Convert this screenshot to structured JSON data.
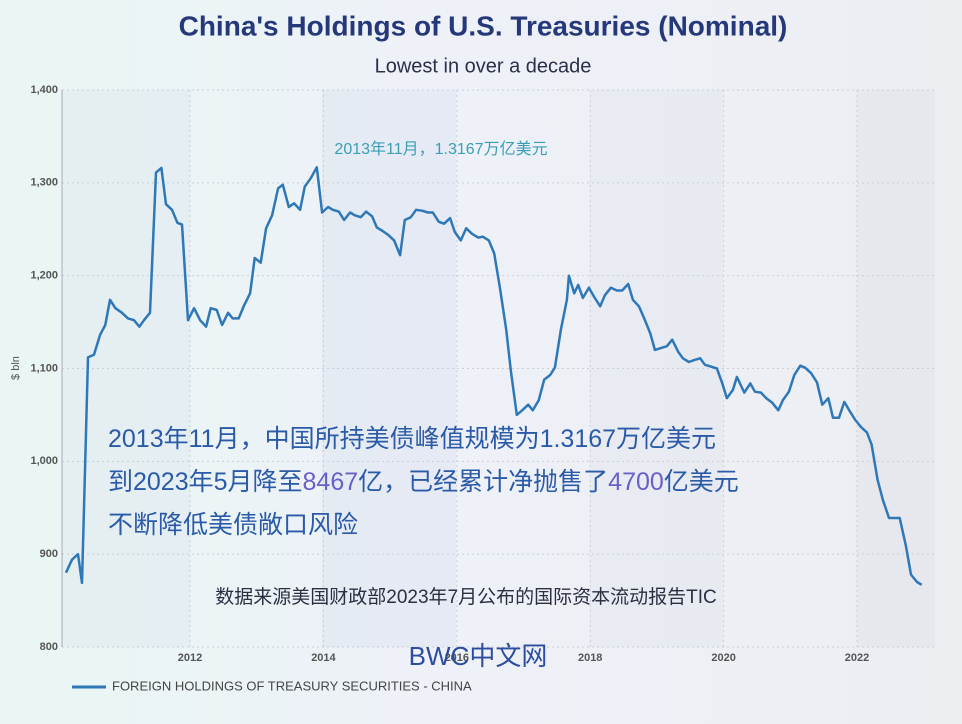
{
  "chart_data": {
    "type": "line",
    "title": "China's Holdings of U.S. Treasuries (Nominal)",
    "subtitle": "Lowest in over a decade",
    "y_label": "$ bln",
    "peak_annotation": "2013年11月，1.3167万亿美元",
    "annotation_lines": [
      [
        "2013年11月，中国所持美债峰值规模为1.3167万亿美元"
      ],
      [
        "到2023年5月降至",
        "8467",
        "亿，已经累计净抛售了",
        "4700",
        "亿美元"
      ],
      [
        "不断降低美债敞口风险"
      ]
    ],
    "source": "数据来源美国财政部2023年7月公布的国际资本流动报告TIC",
    "watermark": "BWC中文网",
    "xlim": [
      2010.08,
      2023.17
    ],
    "xticks": [
      2012,
      2014,
      2016,
      2018,
      2020,
      2022
    ],
    "ylim": [
      800,
      1400
    ],
    "yticks": [
      800,
      900,
      {
        "value": 1000,
        "label": "1,000"
      },
      {
        "value": 1100,
        "label": "1,100"
      },
      {
        "value": 1200,
        "label": "1,200"
      },
      {
        "value": 1300,
        "label": "1,300"
      },
      {
        "value": 1400,
        "label": "1,400"
      }
    ],
    "grid": true,
    "legend": "bottom-left",
    "x": [
      2010.14,
      2010.23,
      2010.32,
      2010.38,
      2010.47,
      2010.56,
      2010.65,
      2010.73,
      2010.8,
      2010.88,
      2010.98,
      2011.07,
      2011.16,
      2011.24,
      2011.31,
      2011.4,
      2011.49,
      2011.57,
      2011.64,
      2011.73,
      2011.81,
      2011.88,
      2011.97,
      2012.06,
      2012.15,
      2012.24,
      2012.31,
      2012.4,
      2012.48,
      2012.57,
      2012.64,
      2012.73,
      2012.81,
      2012.9,
      2012.97,
      2013.06,
      2013.14,
      2013.23,
      2013.32,
      2013.39,
      2013.48,
      2013.56,
      2013.65,
      2013.72,
      2013.81,
      2013.9,
      2013.98,
      2014.07,
      2014.14,
      2014.23,
      2014.31,
      2014.4,
      2014.47,
      2014.56,
      2014.64,
      2014.73,
      2014.8,
      2014.89,
      2014.97,
      2015.06,
      2015.15,
      2015.22,
      2015.31,
      2015.39,
      2015.48,
      2015.57,
      2015.64,
      2015.73,
      2015.81,
      2015.9,
      2015.97,
      2016.06,
      2016.14,
      2016.23,
      2016.32,
      2016.39,
      2016.48,
      2016.56,
      2016.65,
      2016.74,
      2016.81,
      2016.9,
      2016.98,
      2017.07,
      2017.14,
      2017.23,
      2017.31,
      2017.4,
      2017.47,
      2017.56,
      2017.65,
      2017.68,
      2017.76,
      2017.82,
      2017.89,
      2017.98,
      2018.06,
      2018.15,
      2018.22,
      2018.31,
      2018.4,
      2018.48,
      2018.57,
      2018.64,
      2018.73,
      2018.81,
      2018.9,
      2018.97,
      2019.06,
      2019.15,
      2019.23,
      2019.32,
      2019.39,
      2019.48,
      2019.56,
      2019.65,
      2019.72,
      2019.81,
      2019.9,
      2019.98,
      2020.05,
      2020.14,
      2020.2,
      2020.31,
      2020.4,
      2020.47,
      2020.56,
      2020.64,
      2020.73,
      2020.82,
      2020.89,
      2020.98,
      2021.06,
      2021.15,
      2021.22,
      2021.31,
      2021.4,
      2021.48,
      2021.57,
      2021.64,
      2021.73,
      2021.81,
      2021.9,
      2021.97,
      2022.06,
      2022.15,
      2022.22,
      2022.31,
      2022.39,
      2022.48,
      2022.56,
      2022.64,
      2022.73,
      2022.81,
      2022.9,
      2022.97
    ],
    "series": [
      {
        "name": "FOREIGN HOLDINGS OF TREASURY SECURITIES - CHINA",
        "color": "#2f78b8",
        "values": [
          880,
          894,
          900,
          869,
          1112,
          1115,
          1136,
          1147,
          1174,
          1165,
          1160,
          1154,
          1152,
          1145,
          1152,
          1160,
          1311,
          1316,
          1277,
          1271,
          1257,
          1255,
          1152,
          1165,
          1152,
          1145,
          1165,
          1163,
          1147,
          1160,
          1154,
          1154,
          1168,
          1181,
          1219,
          1214,
          1251,
          1265,
          1294,
          1298,
          1274,
          1278,
          1271,
          1296,
          1305,
          1316.7,
          1268,
          1274,
          1271,
          1269,
          1260,
          1268,
          1265,
          1263,
          1269,
          1264,
          1252,
          1248,
          1244,
          1238,
          1222,
          1260,
          1263,
          1271,
          1270,
          1268,
          1268,
          1258,
          1256,
          1262,
          1247,
          1238,
          1251,
          1245,
          1241,
          1242,
          1238,
          1224,
          1185,
          1142,
          1098,
          1050,
          1055,
          1061,
          1055,
          1066,
          1088,
          1093,
          1101,
          1142,
          1174,
          1200,
          1181,
          1190,
          1176,
          1187,
          1177,
          1167,
          1179,
          1187,
          1184,
          1184,
          1191,
          1174,
          1167,
          1154,
          1138,
          1120,
          1122,
          1124,
          1131,
          1118,
          1111,
          1107,
          1109,
          1111,
          1104,
          1102,
          1100,
          1084,
          1068,
          1077,
          1091,
          1074,
          1084,
          1075,
          1074,
          1068,
          1063,
          1055,
          1066,
          1075,
          1093,
          1103,
          1101,
          1095,
          1085,
          1061,
          1068,
          1047,
          1047,
          1064,
          1053,
          1045,
          1037,
          1031,
          1018,
          980,
          958,
          939,
          939,
          939,
          910,
          878,
          870,
          867
        ]
      }
    ]
  }
}
